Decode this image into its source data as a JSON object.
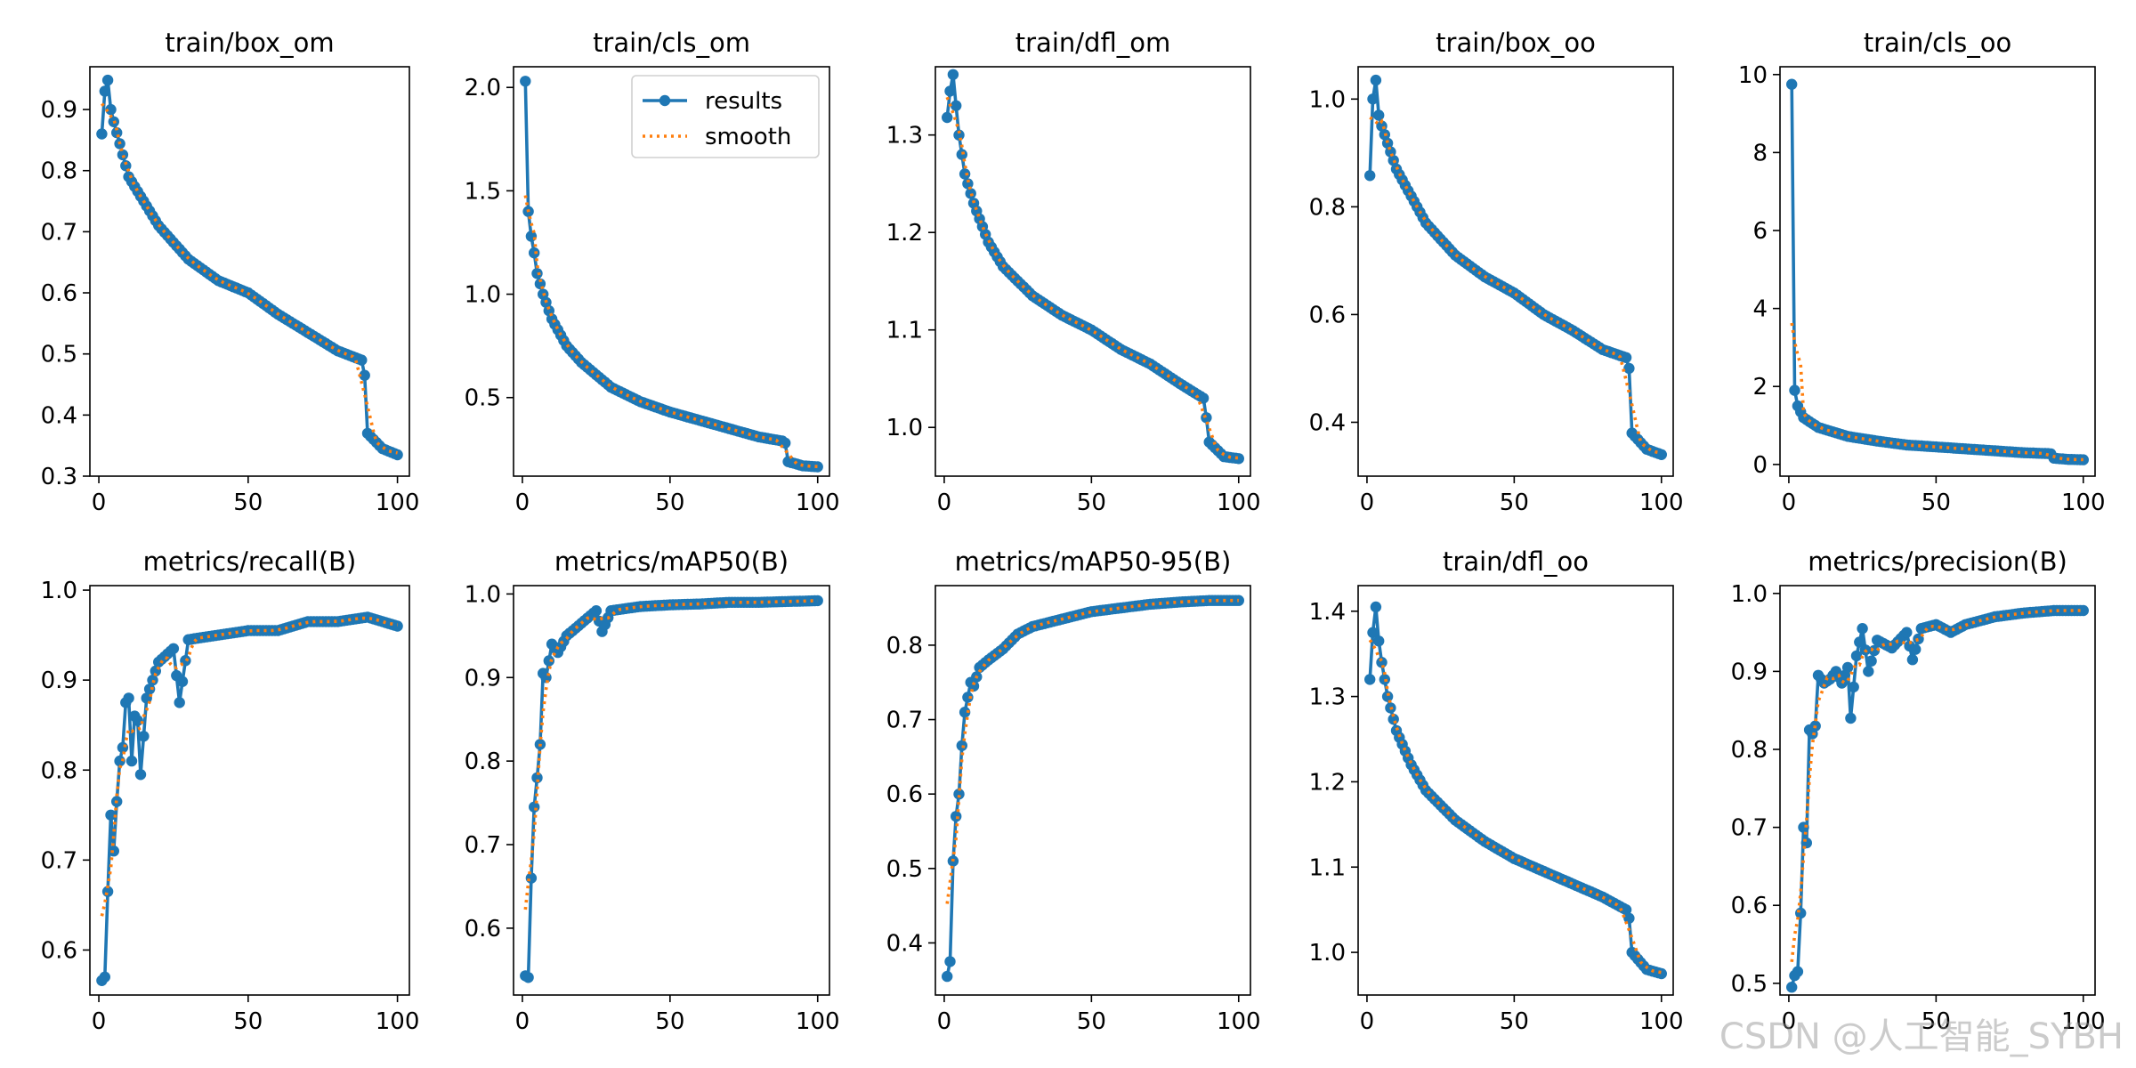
{
  "figure": {
    "watermark": "CSDN @人工智能_SYBH",
    "colors": {
      "results": "#1f77b4",
      "smooth": "#ff7f0e",
      "axes": "#000000",
      "background": "#ffffff"
    }
  },
  "chart_data": [
    {
      "type": "line",
      "title": "train/box_om",
      "xlim": [
        -3,
        104
      ],
      "ylim": [
        0.3,
        0.97
      ],
      "xticks": [
        0,
        50,
        100
      ],
      "yticks": [
        0.3,
        0.4,
        0.5,
        0.6,
        0.7,
        0.8,
        0.9
      ],
      "decimals": 1,
      "legend": [],
      "series": [
        {
          "name": "results",
          "knots": [
            [
              1,
              0.86
            ],
            [
              2,
              0.93
            ],
            [
              3,
              0.948
            ],
            [
              4,
              0.9
            ],
            [
              5,
              0.88
            ],
            [
              10,
              0.79
            ],
            [
              20,
              0.71
            ],
            [
              30,
              0.655
            ],
            [
              40,
              0.62
            ],
            [
              50,
              0.6
            ],
            [
              60,
              0.565
            ],
            [
              70,
              0.535
            ],
            [
              80,
              0.505
            ],
            [
              88,
              0.49
            ],
            [
              89,
              0.465
            ],
            [
              90,
              0.37
            ],
            [
              95,
              0.345
            ],
            [
              100,
              0.335
            ]
          ]
        }
      ]
    },
    {
      "type": "line",
      "title": "train/cls_om",
      "xlim": [
        -3,
        104
      ],
      "ylim": [
        0.12,
        2.1
      ],
      "xticks": [
        0,
        50,
        100
      ],
      "yticks": [
        0.5,
        1.0,
        1.5,
        2.0
      ],
      "decimals": 1,
      "legend": [
        "results",
        "smooth"
      ],
      "series": [
        {
          "name": "results",
          "knots": [
            [
              1,
              2.03
            ],
            [
              2,
              1.4
            ],
            [
              3,
              1.28
            ],
            [
              4,
              1.2
            ],
            [
              5,
              1.1
            ],
            [
              7,
              1.0
            ],
            [
              10,
              0.88
            ],
            [
              15,
              0.75
            ],
            [
              20,
              0.67
            ],
            [
              30,
              0.55
            ],
            [
              40,
              0.48
            ],
            [
              50,
              0.43
            ],
            [
              60,
              0.39
            ],
            [
              70,
              0.35
            ],
            [
              80,
              0.31
            ],
            [
              88,
              0.29
            ],
            [
              89,
              0.28
            ],
            [
              90,
              0.19
            ],
            [
              95,
              0.17
            ],
            [
              100,
              0.165
            ]
          ]
        }
      ]
    },
    {
      "type": "line",
      "title": "train/dfl_om",
      "xlim": [
        -3,
        104
      ],
      "ylim": [
        0.95,
        1.37
      ],
      "xticks": [
        0,
        50,
        100
      ],
      "yticks": [
        1.0,
        1.1,
        1.2,
        1.3
      ],
      "decimals": 1,
      "legend": [],
      "series": [
        {
          "name": "results",
          "knots": [
            [
              1,
              1.318
            ],
            [
              2,
              1.345
            ],
            [
              3,
              1.362
            ],
            [
              4,
              1.33
            ],
            [
              5,
              1.3
            ],
            [
              7,
              1.26
            ],
            [
              10,
              1.23
            ],
            [
              15,
              1.19
            ],
            [
              20,
              1.165
            ],
            [
              30,
              1.135
            ],
            [
              40,
              1.115
            ],
            [
              50,
              1.1
            ],
            [
              60,
              1.08
            ],
            [
              70,
              1.065
            ],
            [
              80,
              1.045
            ],
            [
              88,
              1.03
            ],
            [
              89,
              1.01
            ],
            [
              90,
              0.985
            ],
            [
              95,
              0.97
            ],
            [
              100,
              0.968
            ]
          ]
        }
      ]
    },
    {
      "type": "line",
      "title": "train/box_oo",
      "xlim": [
        -3,
        104
      ],
      "ylim": [
        0.3,
        1.06
      ],
      "xticks": [
        0,
        50,
        100
      ],
      "yticks": [
        0.4,
        0.6,
        0.8,
        1.0
      ],
      "decimals": 1,
      "legend": [],
      "series": [
        {
          "name": "results",
          "knots": [
            [
              1,
              0.858
            ],
            [
              2,
              1.0
            ],
            [
              3,
              1.035
            ],
            [
              4,
              0.97
            ],
            [
              5,
              0.95
            ],
            [
              10,
              0.87
            ],
            [
              20,
              0.77
            ],
            [
              30,
              0.71
            ],
            [
              40,
              0.67
            ],
            [
              50,
              0.64
            ],
            [
              60,
              0.6
            ],
            [
              70,
              0.57
            ],
            [
              80,
              0.535
            ],
            [
              88,
              0.52
            ],
            [
              89,
              0.5
            ],
            [
              90,
              0.38
            ],
            [
              95,
              0.35
            ],
            [
              100,
              0.34
            ]
          ]
        }
      ]
    },
    {
      "type": "line",
      "title": "train/cls_oo",
      "xlim": [
        -3,
        104
      ],
      "ylim": [
        -0.3,
        10.2
      ],
      "xticks": [
        0,
        50,
        100
      ],
      "yticks": [
        0,
        2,
        4,
        6,
        8,
        10
      ],
      "decimals": 0,
      "legend": [],
      "series": [
        {
          "name": "results",
          "knots": [
            [
              1,
              9.75
            ],
            [
              2,
              1.9
            ],
            [
              3,
              1.5
            ],
            [
              4,
              1.35
            ],
            [
              5,
              1.2
            ],
            [
              10,
              0.95
            ],
            [
              20,
              0.72
            ],
            [
              30,
              0.6
            ],
            [
              40,
              0.5
            ],
            [
              50,
              0.45
            ],
            [
              60,
              0.4
            ],
            [
              70,
              0.35
            ],
            [
              80,
              0.3
            ],
            [
              88,
              0.28
            ],
            [
              89,
              0.27
            ],
            [
              90,
              0.16
            ],
            [
              95,
              0.13
            ],
            [
              100,
              0.12
            ]
          ]
        }
      ]
    },
    {
      "type": "line",
      "title": "metrics/recall(B)",
      "xlim": [
        -3,
        104
      ],
      "ylim": [
        0.55,
        1.005
      ],
      "xticks": [
        0,
        50,
        100
      ],
      "yticks": [
        0.6,
        0.7,
        0.8,
        0.9,
        1.0
      ],
      "decimals": 1,
      "legend": [],
      "series": [
        {
          "name": "results",
          "knots": [
            [
              1,
              0.566
            ],
            [
              2,
              0.57
            ],
            [
              3,
              0.665
            ],
            [
              4,
              0.75
            ],
            [
              5,
              0.71
            ],
            [
              6,
              0.765
            ],
            [
              7,
              0.81
            ],
            [
              8,
              0.825
            ],
            [
              9,
              0.875
            ],
            [
              10,
              0.88
            ],
            [
              11,
              0.81
            ],
            [
              12,
              0.86
            ],
            [
              13,
              0.855
            ],
            [
              14,
              0.795
            ],
            [
              16,
              0.88
            ],
            [
              18,
              0.9
            ],
            [
              20,
              0.92
            ],
            [
              25,
              0.935
            ],
            [
              27,
              0.875
            ],
            [
              30,
              0.945
            ],
            [
              40,
              0.95
            ],
            [
              50,
              0.955
            ],
            [
              60,
              0.955
            ],
            [
              70,
              0.965
            ],
            [
              80,
              0.965
            ],
            [
              90,
              0.97
            ],
            [
              100,
              0.96
            ]
          ]
        }
      ]
    },
    {
      "type": "line",
      "title": "metrics/mAP50(B)",
      "xlim": [
        -3,
        104
      ],
      "ylim": [
        0.52,
        1.01
      ],
      "xticks": [
        0,
        50,
        100
      ],
      "yticks": [
        0.6,
        0.7,
        0.8,
        0.9,
        1.0
      ],
      "decimals": 1,
      "legend": [],
      "series": [
        {
          "name": "results",
          "knots": [
            [
              1,
              0.543
            ],
            [
              2,
              0.541
            ],
            [
              3,
              0.66
            ],
            [
              4,
              0.745
            ],
            [
              5,
              0.78
            ],
            [
              6,
              0.82
            ],
            [
              7,
              0.905
            ],
            [
              8,
              0.9
            ],
            [
              10,
              0.94
            ],
            [
              12,
              0.93
            ],
            [
              15,
              0.95
            ],
            [
              20,
              0.965
            ],
            [
              25,
              0.98
            ],
            [
              27,
              0.955
            ],
            [
              30,
              0.98
            ],
            [
              40,
              0.985
            ],
            [
              50,
              0.987
            ],
            [
              60,
              0.988
            ],
            [
              70,
              0.99
            ],
            [
              80,
              0.99
            ],
            [
              90,
              0.991
            ],
            [
              100,
              0.992
            ]
          ]
        }
      ]
    },
    {
      "type": "line",
      "title": "metrics/mAP50-95(B)",
      "xlim": [
        -3,
        104
      ],
      "ylim": [
        0.33,
        0.88
      ],
      "xticks": [
        0,
        50,
        100
      ],
      "yticks": [
        0.4,
        0.5,
        0.6,
        0.7,
        0.8
      ],
      "decimals": 1,
      "legend": [],
      "series": [
        {
          "name": "results",
          "knots": [
            [
              1,
              0.355
            ],
            [
              2,
              0.375
            ],
            [
              3,
              0.51
            ],
            [
              4,
              0.57
            ],
            [
              5,
              0.6
            ],
            [
              6,
              0.665
            ],
            [
              7,
              0.71
            ],
            [
              8,
              0.73
            ],
            [
              9,
              0.75
            ],
            [
              10,
              0.745
            ],
            [
              12,
              0.77
            ],
            [
              15,
              0.78
            ],
            [
              20,
              0.795
            ],
            [
              25,
              0.815
            ],
            [
              30,
              0.825
            ],
            [
              40,
              0.835
            ],
            [
              50,
              0.845
            ],
            [
              60,
              0.85
            ],
            [
              70,
              0.855
            ],
            [
              80,
              0.858
            ],
            [
              90,
              0.86
            ],
            [
              100,
              0.86
            ]
          ]
        }
      ]
    },
    {
      "type": "line",
      "title": "train/dfl_oo",
      "xlim": [
        -3,
        104
      ],
      "ylim": [
        0.95,
        1.43
      ],
      "xticks": [
        0,
        50,
        100
      ],
      "yticks": [
        1.0,
        1.1,
        1.2,
        1.3,
        1.4
      ],
      "decimals": 1,
      "legend": [],
      "series": [
        {
          "name": "results",
          "knots": [
            [
              1,
              1.32
            ],
            [
              2,
              1.375
            ],
            [
              3,
              1.405
            ],
            [
              4,
              1.365
            ],
            [
              5,
              1.34
            ],
            [
              7,
              1.3
            ],
            [
              10,
              1.26
            ],
            [
              15,
              1.22
            ],
            [
              20,
              1.19
            ],
            [
              30,
              1.155
            ],
            [
              40,
              1.13
            ],
            [
              50,
              1.11
            ],
            [
              60,
              1.095
            ],
            [
              70,
              1.08
            ],
            [
              80,
              1.065
            ],
            [
              88,
              1.05
            ],
            [
              89,
              1.04
            ],
            [
              90,
              1.0
            ],
            [
              95,
              0.98
            ],
            [
              100,
              0.975
            ]
          ]
        }
      ]
    },
    {
      "type": "line",
      "title": "metrics/precision(B)",
      "xlim": [
        -3,
        104
      ],
      "ylim": [
        0.485,
        1.01
      ],
      "xticks": [
        0,
        50,
        100
      ],
      "yticks": [
        0.5,
        0.6,
        0.7,
        0.8,
        0.9,
        1.0
      ],
      "decimals": 1,
      "legend": [],
      "series": [
        {
          "name": "results",
          "knots": [
            [
              1,
              0.495
            ],
            [
              2,
              0.51
            ],
            [
              3,
              0.515
            ],
            [
              4,
              0.59
            ],
            [
              5,
              0.7
            ],
            [
              6,
              0.68
            ],
            [
              7,
              0.825
            ],
            [
              8,
              0.82
            ],
            [
              9,
              0.83
            ],
            [
              10,
              0.895
            ],
            [
              12,
              0.885
            ],
            [
              14,
              0.89
            ],
            [
              16,
              0.9
            ],
            [
              18,
              0.885
            ],
            [
              20,
              0.905
            ],
            [
              21,
              0.84
            ],
            [
              23,
              0.92
            ],
            [
              25,
              0.955
            ],
            [
              27,
              0.9
            ],
            [
              30,
              0.94
            ],
            [
              35,
              0.93
            ],
            [
              40,
              0.95
            ],
            [
              42,
              0.915
            ],
            [
              45,
              0.955
            ],
            [
              50,
              0.96
            ],
            [
              55,
              0.95
            ],
            [
              60,
              0.96
            ],
            [
              70,
              0.97
            ],
            [
              80,
              0.975
            ],
            [
              90,
              0.978
            ],
            [
              100,
              0.978
            ]
          ]
        }
      ]
    }
  ]
}
